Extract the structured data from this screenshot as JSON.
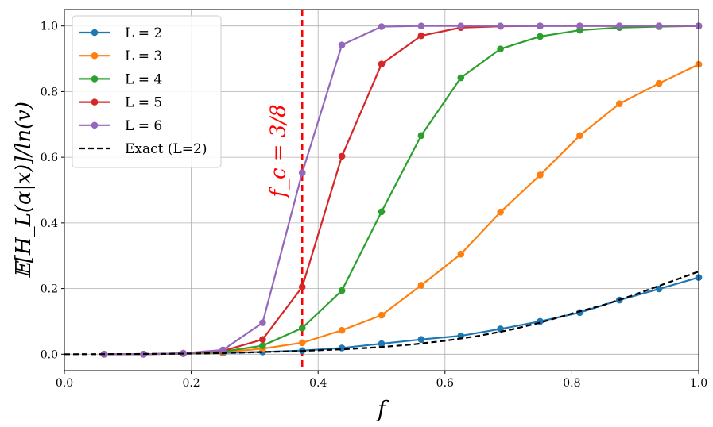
{
  "chart_data": {
    "type": "line",
    "xlabel": "f",
    "ylabel": "𝔼[H_L(α|x)]/ln(v)",
    "xlim": [
      0.0,
      1.0
    ],
    "ylim": [
      -0.05,
      1.05
    ],
    "xticks": [
      "0.0",
      "0.2",
      "0.4",
      "0.6",
      "0.8",
      "1.0"
    ],
    "yticks": [
      "0.0",
      "0.2",
      "0.4",
      "0.6",
      "0.8",
      "1.0"
    ],
    "grid": true,
    "legend_position": "top-left",
    "x": [
      0.0625,
      0.125,
      0.1875,
      0.25,
      0.3125,
      0.375,
      0.4375,
      0.5,
      0.5625,
      0.625,
      0.6875,
      0.75,
      0.8125,
      0.875,
      0.9375,
      1.0
    ],
    "series": [
      {
        "name": "L = 2",
        "color": "#1f77b4",
        "values": [
          0.0,
          0.0,
          0.002,
          0.004,
          0.007,
          0.011,
          0.019,
          0.032,
          0.045,
          0.056,
          0.077,
          0.1,
          0.127,
          0.165,
          0.199,
          0.234
        ]
      },
      {
        "name": "L = 3",
        "color": "#ff7f0e",
        "values": [
          0.0,
          0.0,
          0.002,
          0.006,
          0.017,
          0.035,
          0.073,
          0.119,
          0.21,
          0.305,
          0.433,
          0.546,
          0.666,
          0.763,
          0.825,
          0.883
        ]
      },
      {
        "name": "L = 4",
        "color": "#2ca02c",
        "values": [
          0.0,
          0.0,
          0.002,
          0.008,
          0.026,
          0.08,
          0.194,
          0.434,
          0.666,
          0.842,
          0.93,
          0.968,
          0.987,
          0.995,
          0.998,
          1.0
        ]
      },
      {
        "name": "L = 5",
        "color": "#d62728",
        "values": [
          0.0,
          0.0,
          0.003,
          0.01,
          0.045,
          0.205,
          0.603,
          0.884,
          0.97,
          0.995,
          0.999,
          1.0,
          1.0,
          1.0,
          1.0,
          1.0
        ]
      },
      {
        "name": "L = 6",
        "color": "#9467bd",
        "values": [
          0.0,
          0.0,
          0.003,
          0.013,
          0.096,
          0.553,
          0.942,
          0.998,
          1.0,
          1.0,
          1.0,
          1.0,
          1.0,
          1.0,
          1.0,
          1.0
        ]
      }
    ],
    "exact": {
      "name": "Exact (L=2)",
      "color": "#000000",
      "x": [
        0.0,
        0.1,
        0.2,
        0.25,
        0.3,
        0.375,
        0.45,
        0.5,
        0.55,
        0.6,
        0.65,
        0.7,
        0.75,
        0.8,
        0.85,
        0.9,
        0.95,
        1.0
      ],
      "values": [
        0.0,
        0.0005,
        0.002,
        0.0035,
        0.006,
        0.01,
        0.016,
        0.022,
        0.03,
        0.041,
        0.055,
        0.073,
        0.096,
        0.124,
        0.15,
        0.182,
        0.217,
        0.252
      ]
    },
    "critical_line": {
      "x": 0.375,
      "label": "f_c = 3/8",
      "color": "#ff0000"
    }
  }
}
